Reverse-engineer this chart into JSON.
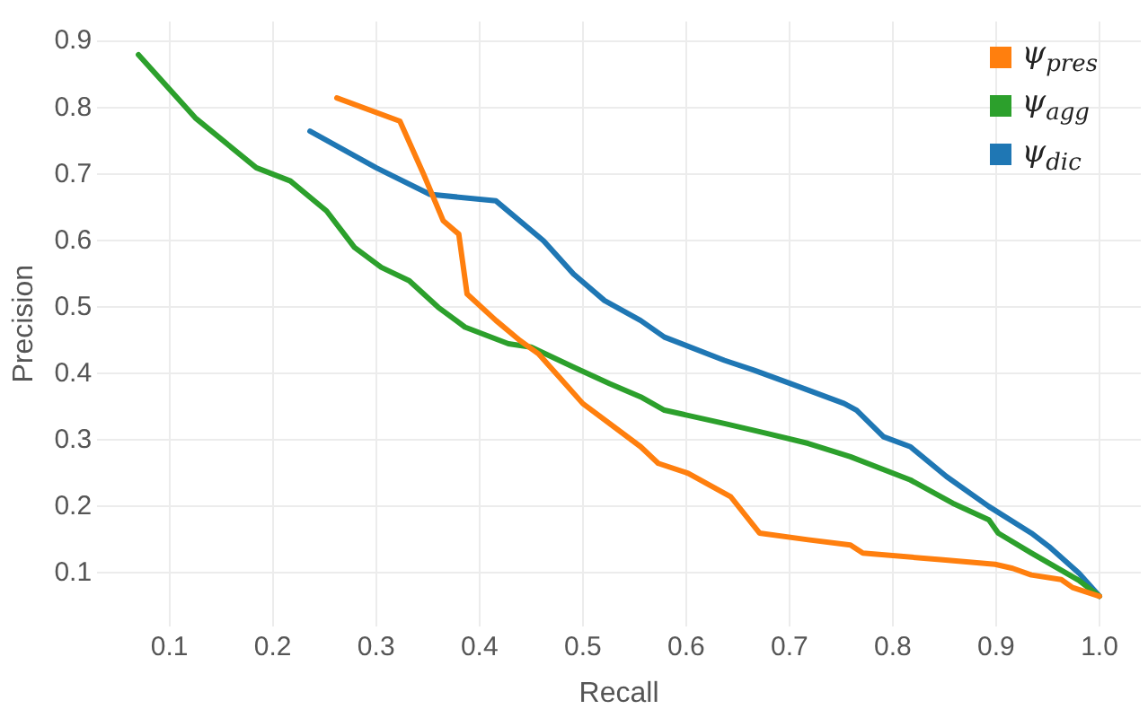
{
  "chart_data": {
    "type": "line",
    "xlabel": "Recall",
    "ylabel": "Precision",
    "xlim": [
      0.03,
      1.04
    ],
    "ylim": [
      0.02,
      0.93
    ],
    "xticks": [
      0.1,
      0.2,
      0.3,
      0.4,
      0.5,
      0.6,
      0.7,
      0.8,
      0.9,
      {
        "value": 1.0,
        "label": "1.0"
      }
    ],
    "yticks": [
      0.1,
      0.2,
      0.3,
      0.4,
      0.5,
      0.6,
      0.7,
      0.8,
      0.9
    ],
    "grid": true,
    "legend": "top right",
    "marker": "none",
    "line_style": "solid",
    "series": [
      {
        "name": "ψ$_{pres}$",
        "color": "#ff7f0e",
        "x": [
          0.262,
          0.323,
          0.346,
          0.365,
          0.38,
          0.388,
          0.416,
          0.439,
          0.457,
          0.5,
          0.556,
          0.573,
          0.602,
          0.643,
          0.671,
          0.718,
          0.759,
          0.771,
          0.846,
          0.899,
          0.916,
          0.934,
          0.963,
          0.974,
          1.0
        ],
        "values": [
          0.815,
          0.78,
          0.7,
          0.63,
          0.61,
          0.52,
          0.48,
          0.45,
          0.43,
          0.355,
          0.29,
          0.265,
          0.25,
          0.215,
          0.16,
          0.15,
          0.142,
          0.13,
          0.12,
          0.113,
          0.107,
          0.097,
          0.09,
          0.078,
          0.065
        ]
      },
      {
        "name": "ψ$_{agg}$",
        "color": "#2ca02c",
        "x": [
          0.07,
          0.125,
          0.184,
          0.217,
          0.252,
          0.279,
          0.305,
          0.332,
          0.36,
          0.386,
          0.428,
          0.45,
          0.491,
          0.526,
          0.556,
          0.579,
          0.637,
          0.678,
          0.718,
          0.759,
          0.817,
          0.858,
          0.893,
          0.902,
          0.934,
          0.98,
          1.0
        ],
        "values": [
          0.88,
          0.785,
          0.71,
          0.69,
          0.645,
          0.59,
          0.56,
          0.54,
          0.5,
          0.47,
          0.445,
          0.44,
          0.41,
          0.385,
          0.365,
          0.345,
          0.325,
          0.31,
          0.295,
          0.275,
          0.24,
          0.205,
          0.18,
          0.16,
          0.13,
          0.089,
          0.065
        ]
      },
      {
        "name": "ψ$_{dic}$",
        "color": "#1f77b4",
        "x": [
          0.236,
          0.3,
          0.352,
          0.416,
          0.462,
          0.491,
          0.521,
          0.556,
          0.579,
          0.637,
          0.666,
          0.701,
          0.753,
          0.765,
          0.791,
          0.817,
          0.852,
          0.893,
          0.934,
          0.951,
          0.98,
          1.0
        ],
        "values": [
          0.765,
          0.71,
          0.67,
          0.66,
          0.6,
          0.55,
          0.51,
          0.48,
          0.455,
          0.42,
          0.405,
          0.385,
          0.355,
          0.345,
          0.305,
          0.29,
          0.245,
          0.2,
          0.16,
          0.14,
          0.1,
          0.065
        ]
      }
    ]
  }
}
